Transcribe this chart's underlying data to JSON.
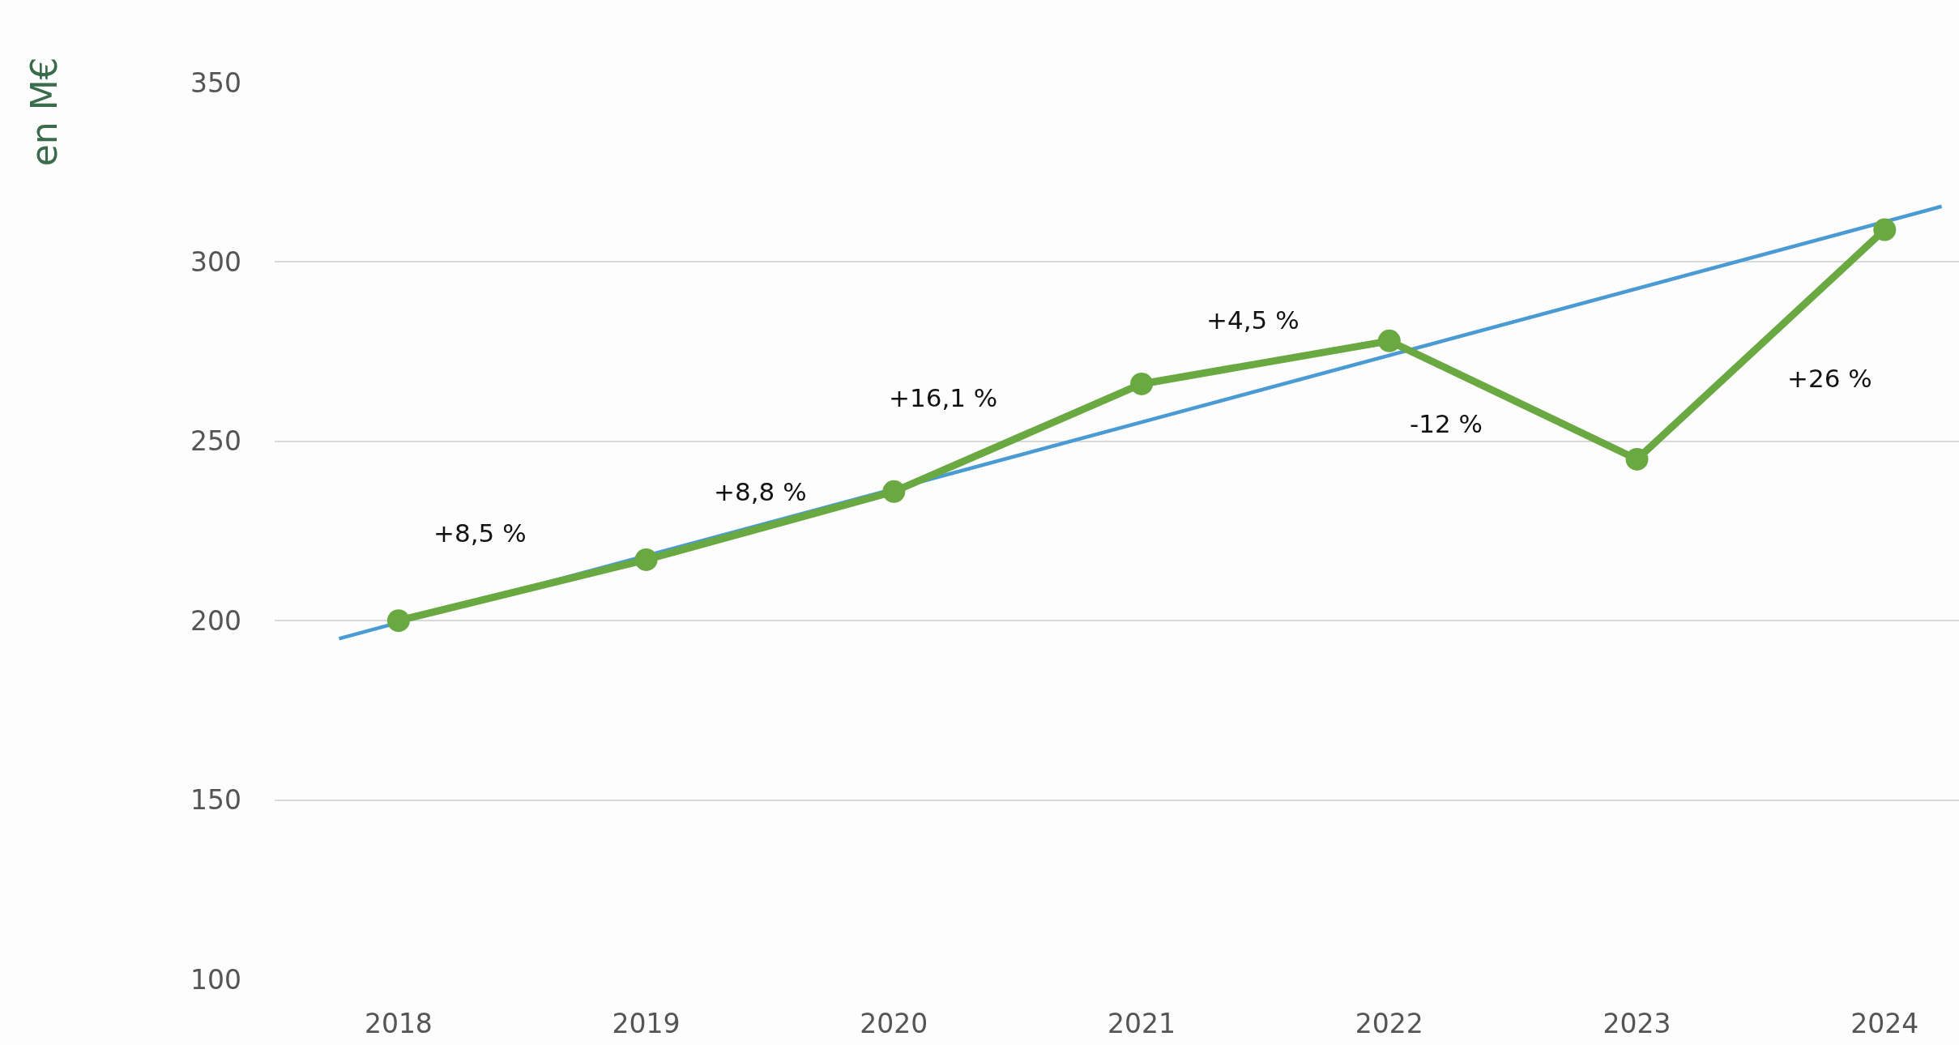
{
  "chart_data": {
    "type": "line",
    "ylabel": "en M€",
    "x": [
      2018,
      2019,
      2020,
      2021,
      2022,
      2023,
      2024
    ],
    "series": [
      {
        "color": "#6aa842",
        "values": [
          200,
          217,
          236,
          266,
          278,
          245,
          309
        ],
        "marker": "circle"
      },
      {
        "type": "line",
        "color": "#4a9bd4",
        "x": [
          2017.76,
          2024.23
        ],
        "values": [
          195,
          315.5
        ],
        "marker": "none"
      }
    ],
    "xlim": [
      2017.5,
      2024.3
    ],
    "xticks": [
      2018,
      2019,
      2020,
      2021,
      2022,
      2023,
      2024
    ],
    "ylim": [
      100,
      350
    ],
    "yticks": [
      100,
      150,
      200,
      250,
      300,
      350
    ],
    "grid": "y",
    "legend": false,
    "annotations": [
      "+8,5 %",
      "+8,8 %",
      "+16,1 %",
      "+4,5 %",
      "-12 %",
      "+26 %"
    ]
  }
}
